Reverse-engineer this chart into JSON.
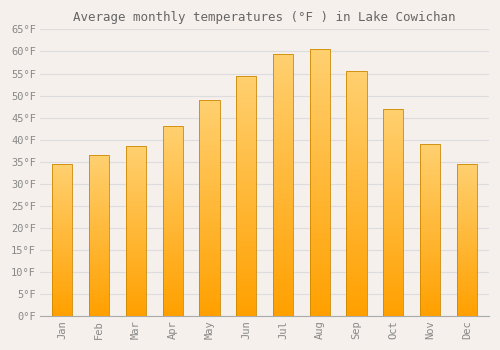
{
  "title": "Average monthly temperatures (°F ) in Lake Cowichan",
  "months": [
    "Jan",
    "Feb",
    "Mar",
    "Apr",
    "May",
    "Jun",
    "Jul",
    "Aug",
    "Sep",
    "Oct",
    "Nov",
    "Dec"
  ],
  "values": [
    34.5,
    36.5,
    38.5,
    43.0,
    49.0,
    54.5,
    59.5,
    60.5,
    55.5,
    47.0,
    39.0,
    34.5
  ],
  "bar_color_top": "#FFD070",
  "bar_color_bottom": "#FFA000",
  "bar_edge_color": "#CC8800",
  "background_color": "#F5F0EC",
  "plot_bg_color": "#F5F0EC",
  "grid_color": "#DDDDDD",
  "tick_label_color": "#888888",
  "title_color": "#666666",
  "ylim": [
    0,
    65
  ],
  "yticks": [
    0,
    5,
    10,
    15,
    20,
    25,
    30,
    35,
    40,
    45,
    50,
    55,
    60,
    65
  ],
  "bar_width": 0.55,
  "figsize": [
    5.0,
    3.5
  ],
  "dpi": 100
}
